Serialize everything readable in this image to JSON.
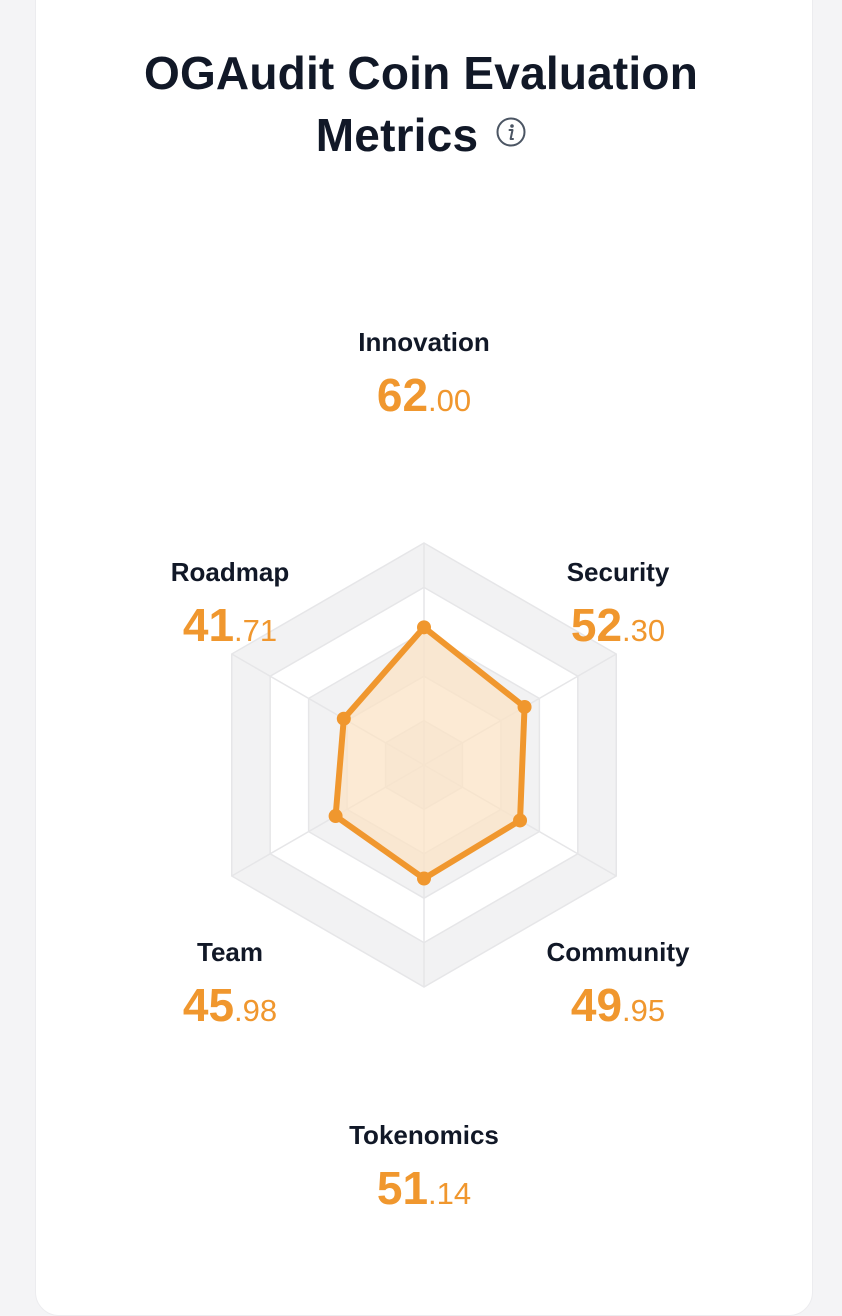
{
  "card": {
    "title_line1": "OGAudit Coin Evaluation",
    "title_line2": "Metrics"
  },
  "colors": {
    "accent": "#f0972e",
    "fill": "#fbe3c6",
    "grid_band": "#f2f2f3",
    "grid_line": "#e6e6e8",
    "text": "#111827"
  },
  "metrics": [
    {
      "label": "Innovation",
      "int": "62",
      "dec": ".00"
    },
    {
      "label": "Security",
      "int": "52",
      "dec": ".30"
    },
    {
      "label": "Community",
      "int": "49",
      "dec": ".95"
    },
    {
      "label": "Tokenomics",
      "int": "51",
      "dec": ".14"
    },
    {
      "label": "Team",
      "int": "45",
      "dec": ".98"
    },
    {
      "label": "Roadmap",
      "int": "41",
      "dec": ".71"
    }
  ],
  "chart_data": {
    "type": "radar",
    "title": "OGAudit Coin Evaluation Metrics",
    "categories": [
      "Innovation",
      "Security",
      "Community",
      "Tokenomics",
      "Team",
      "Roadmap"
    ],
    "values": [
      62.0,
      52.3,
      49.95,
      51.14,
      45.98,
      41.71
    ],
    "rlim": [
      0,
      100
    ],
    "rings": 5,
    "legend": "none"
  }
}
